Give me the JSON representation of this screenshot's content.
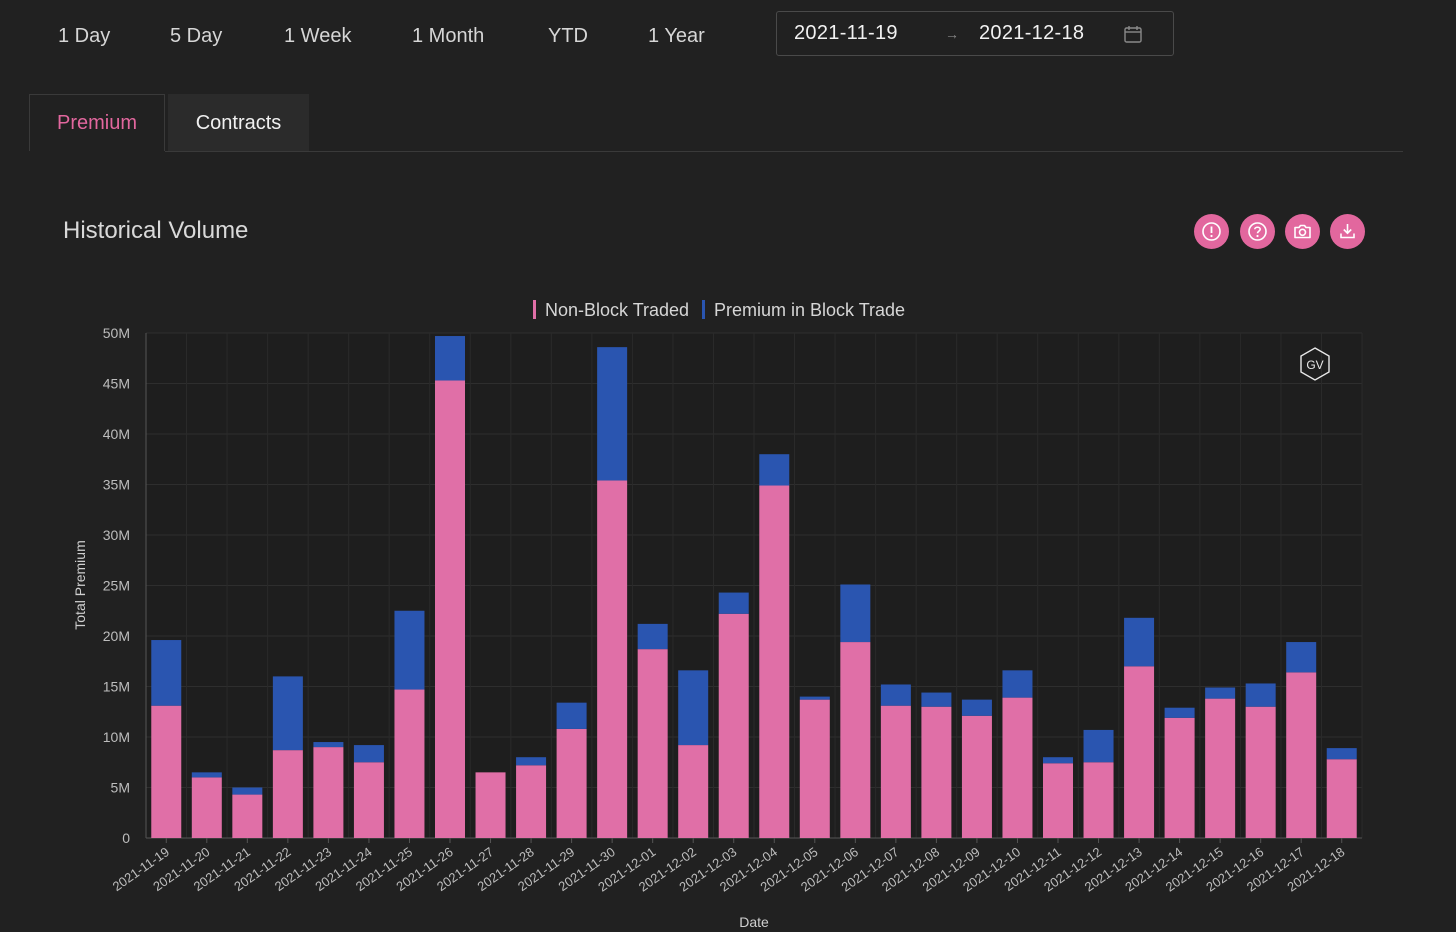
{
  "range_buttons": [
    "1 Day",
    "5 Day",
    "1 Week",
    "1 Month",
    "YTD",
    "1 Year"
  ],
  "date_range": {
    "start": "2021-11-19",
    "separator": "→",
    "end": "2021-12-18",
    "icon": "calendar-icon"
  },
  "tabs": [
    {
      "label": "Premium",
      "active": true
    },
    {
      "label": "Contracts",
      "active": false
    }
  ],
  "section_title": "Historical Volume",
  "toolbar_icons": [
    "info-icon",
    "help-icon",
    "camera-icon",
    "download-icon"
  ],
  "watermark": "GV",
  "colors": {
    "accent": "#e2679e",
    "non_block": "#e06fa7",
    "block": "#2a55b0",
    "background": "#212121"
  },
  "chart_data": {
    "type": "bar",
    "stacked": true,
    "xlabel": "Date",
    "ylabel": "Total Premium",
    "ylim": [
      0,
      50000000
    ],
    "yticks": [
      0,
      5000000,
      10000000,
      15000000,
      20000000,
      25000000,
      30000000,
      35000000,
      40000000,
      45000000,
      50000000
    ],
    "ytick_labels": [
      "0",
      "5M",
      "10M",
      "15M",
      "20M",
      "25M",
      "30M",
      "35M",
      "40M",
      "45M",
      "50M"
    ],
    "legend_position": "top-center",
    "grid": true,
    "categories": [
      "2021-11-19",
      "2021-11-20",
      "2021-11-21",
      "2021-11-22",
      "2021-11-23",
      "2021-11-24",
      "2021-11-25",
      "2021-11-26",
      "2021-11-27",
      "2021-11-28",
      "2021-11-29",
      "2021-11-30",
      "2021-12-01",
      "2021-12-02",
      "2021-12-03",
      "2021-12-04",
      "2021-12-05",
      "2021-12-06",
      "2021-12-07",
      "2021-12-08",
      "2021-12-09",
      "2021-12-10",
      "2021-12-11",
      "2021-12-12",
      "2021-12-13",
      "2021-12-14",
      "2021-12-15",
      "2021-12-16",
      "2021-12-17",
      "2021-12-18"
    ],
    "series": [
      {
        "name": "Non-Block Traded",
        "color": "#e06fa7",
        "values": [
          13100000,
          6000000,
          4300000,
          8700000,
          9000000,
          7500000,
          14700000,
          45300000,
          6500000,
          7200000,
          10800000,
          35400000,
          18700000,
          9200000,
          22200000,
          34900000,
          13700000,
          19400000,
          13100000,
          13000000,
          12100000,
          13900000,
          7400000,
          7500000,
          17000000,
          11900000,
          13800000,
          13000000,
          16400000,
          7800000
        ]
      },
      {
        "name": "Premium in Block Trade",
        "color": "#2a55b0",
        "values": [
          6500000,
          500000,
          700000,
          7300000,
          500000,
          1700000,
          7800000,
          4400000,
          0,
          800000,
          2600000,
          13200000,
          2500000,
          7400000,
          2100000,
          3100000,
          300000,
          5700000,
          2100000,
          1400000,
          1600000,
          2700000,
          600000,
          3200000,
          4800000,
          1000000,
          1100000,
          2300000,
          3000000,
          1100000
        ]
      }
    ]
  }
}
